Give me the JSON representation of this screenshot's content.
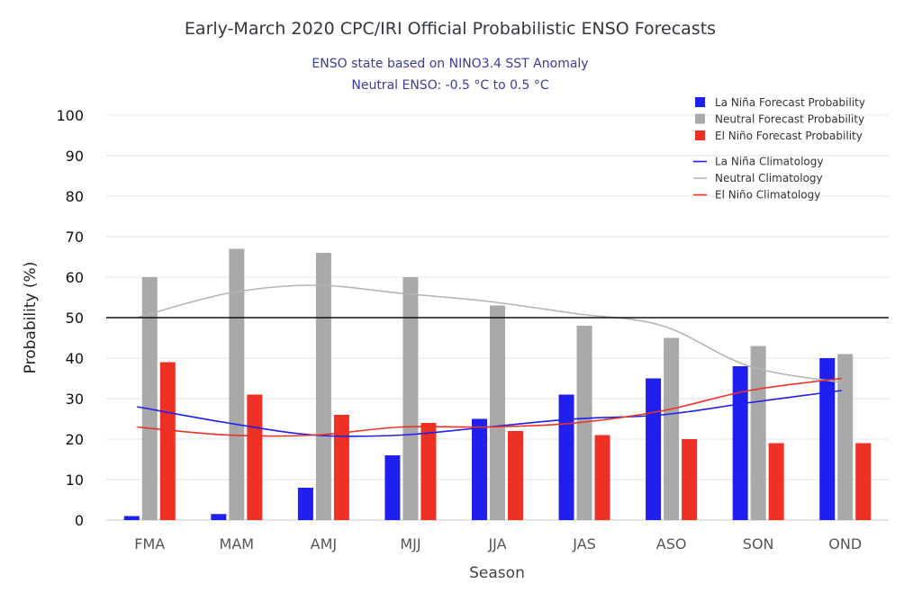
{
  "title": "Early-March 2020 CPC/IRI Official Probabilistic ENSO Forecasts",
  "subtitle_lines": [
    "ENSO state based on NINO3.4 SST Anomaly",
    "Neutral ENSO: -0.5 °C to 0.5 °C"
  ],
  "chart_data": {
    "type": "bar",
    "title": "Early-March 2020 CPC/IRI Official Probabilistic ENSO Forecasts",
    "xlabel": "Season",
    "ylabel": "Probability (%)",
    "ylim": [
      0,
      100
    ],
    "yticks": [
      0,
      10,
      20,
      30,
      40,
      50,
      60,
      70,
      80,
      90,
      100
    ],
    "grid": true,
    "legend_position": "top-right",
    "reference_line": 50,
    "categories": [
      "FMA",
      "MAM",
      "AMJ",
      "MJJ",
      "JJA",
      "JAS",
      "ASO",
      "SON",
      "OND"
    ],
    "series": [
      {
        "name": "La Niña Forecast Probability",
        "type": "bar",
        "color": "#1f1ff0",
        "values": [
          1,
          1.5,
          8,
          16,
          25,
          31,
          35,
          38,
          40
        ]
      },
      {
        "name": "Neutral Forecast Probability",
        "type": "bar",
        "color": "#a9a9a9",
        "values": [
          60,
          67,
          66,
          60,
          53,
          48,
          45,
          43,
          41
        ]
      },
      {
        "name": "El Niño Forecast Probability",
        "type": "bar",
        "color": "#ee3124",
        "values": [
          39,
          31,
          26,
          24,
          22,
          21,
          20,
          19,
          19
        ]
      },
      {
        "name": "La Niña Climatology",
        "type": "line",
        "color": "#1f1ff0",
        "values": [
          28,
          24,
          21,
          21,
          23,
          25,
          26,
          29,
          32
        ]
      },
      {
        "name": "Neutral Climatology",
        "type": "line",
        "color": "#b5b5b5",
        "values": [
          50,
          56,
          58,
          56,
          54,
          51,
          48,
          38,
          34
        ]
      },
      {
        "name": "El Niño Climatology",
        "type": "line",
        "color": "#ee3124",
        "values": [
          23,
          21,
          21,
          23,
          23,
          24,
          27,
          32,
          35
        ]
      }
    ]
  }
}
